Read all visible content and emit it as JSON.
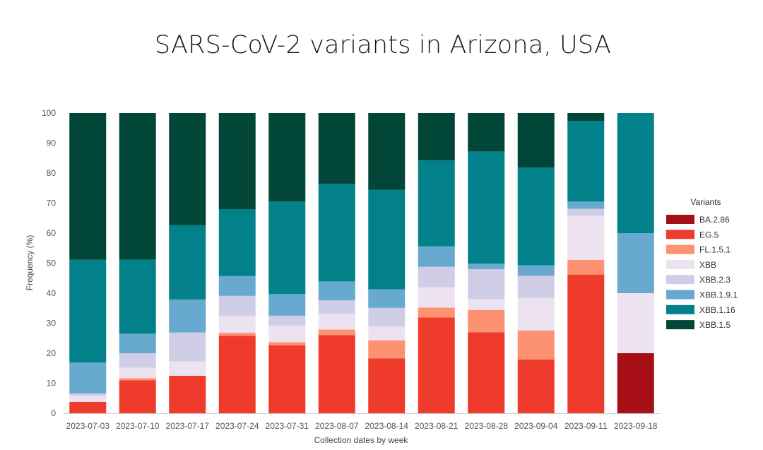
{
  "chart_data": {
    "type": "bar",
    "stacked": true,
    "title": "SARS-CoV-2 variants in Arizona, USA",
    "xlabel": "Collection dates by week",
    "ylabel": "Frequency (%)",
    "ylim": [
      0,
      100
    ],
    "yticks": [
      0,
      10,
      20,
      30,
      40,
      50,
      60,
      70,
      80,
      90,
      100
    ],
    "grid": false,
    "legend_title": "Variants",
    "legend_position": "right",
    "categories": [
      "2023-07-03",
      "2023-07-10",
      "2023-07-17",
      "2023-07-24",
      "2023-07-31",
      "2023-08-07",
      "2023-08-14",
      "2023-08-21",
      "2023-08-28",
      "2023-09-04",
      "2023-09-11",
      "2023-09-18"
    ],
    "series": [
      {
        "name": "BA.2.86",
        "color": "#a50f15",
        "values": [
          0,
          0,
          0,
          0,
          0,
          0,
          0,
          0,
          0,
          0,
          0,
          20
        ]
      },
      {
        "name": "EG.5",
        "color": "#ef3b2c",
        "values": [
          3.8,
          11.0,
          12.5,
          25.8,
          22.6,
          26.0,
          18.3,
          31.9,
          27.0,
          17.9,
          46.2,
          0
        ]
      },
      {
        "name": "FL.1.5.1",
        "color": "#fc9272",
        "values": [
          0,
          0.7,
          0,
          1.0,
          1.1,
          1.9,
          6.0,
          3.3,
          7.4,
          9.7,
          4.9,
          0
        ]
      },
      {
        "name": "XBB",
        "color": "#ece2f0",
        "values": [
          1.9,
          3.5,
          4.8,
          5.7,
          5.5,
          5.3,
          4.6,
          6.8,
          3.6,
          10.8,
          14.7,
          20
        ]
      },
      {
        "name": "XBB.2.3",
        "color": "#d0cde6",
        "values": [
          0.9,
          4.8,
          9.6,
          6.6,
          3.3,
          4.4,
          6.2,
          6.8,
          10.0,
          7.4,
          2.3,
          0
        ]
      },
      {
        "name": "XBB.1.9.1",
        "color": "#67a9cf",
        "values": [
          10.3,
          6.5,
          11.0,
          6.6,
          7.2,
          6.3,
          6.2,
          6.8,
          1.8,
          3.5,
          2.4,
          20
        ]
      },
      {
        "name": "XBB.1.16",
        "color": "#02818a",
        "values": [
          34.2,
          24.7,
          24.8,
          22.3,
          30.8,
          32.5,
          33.1,
          28.6,
          37.4,
          32.5,
          26.9,
          40
        ]
      },
      {
        "name": "XBB.1.5",
        "color": "#014636",
        "values": [
          48.9,
          48.8,
          37.3,
          32.0,
          29.5,
          23.6,
          25.6,
          15.8,
          12.8,
          18.2,
          2.6,
          0
        ]
      }
    ]
  }
}
